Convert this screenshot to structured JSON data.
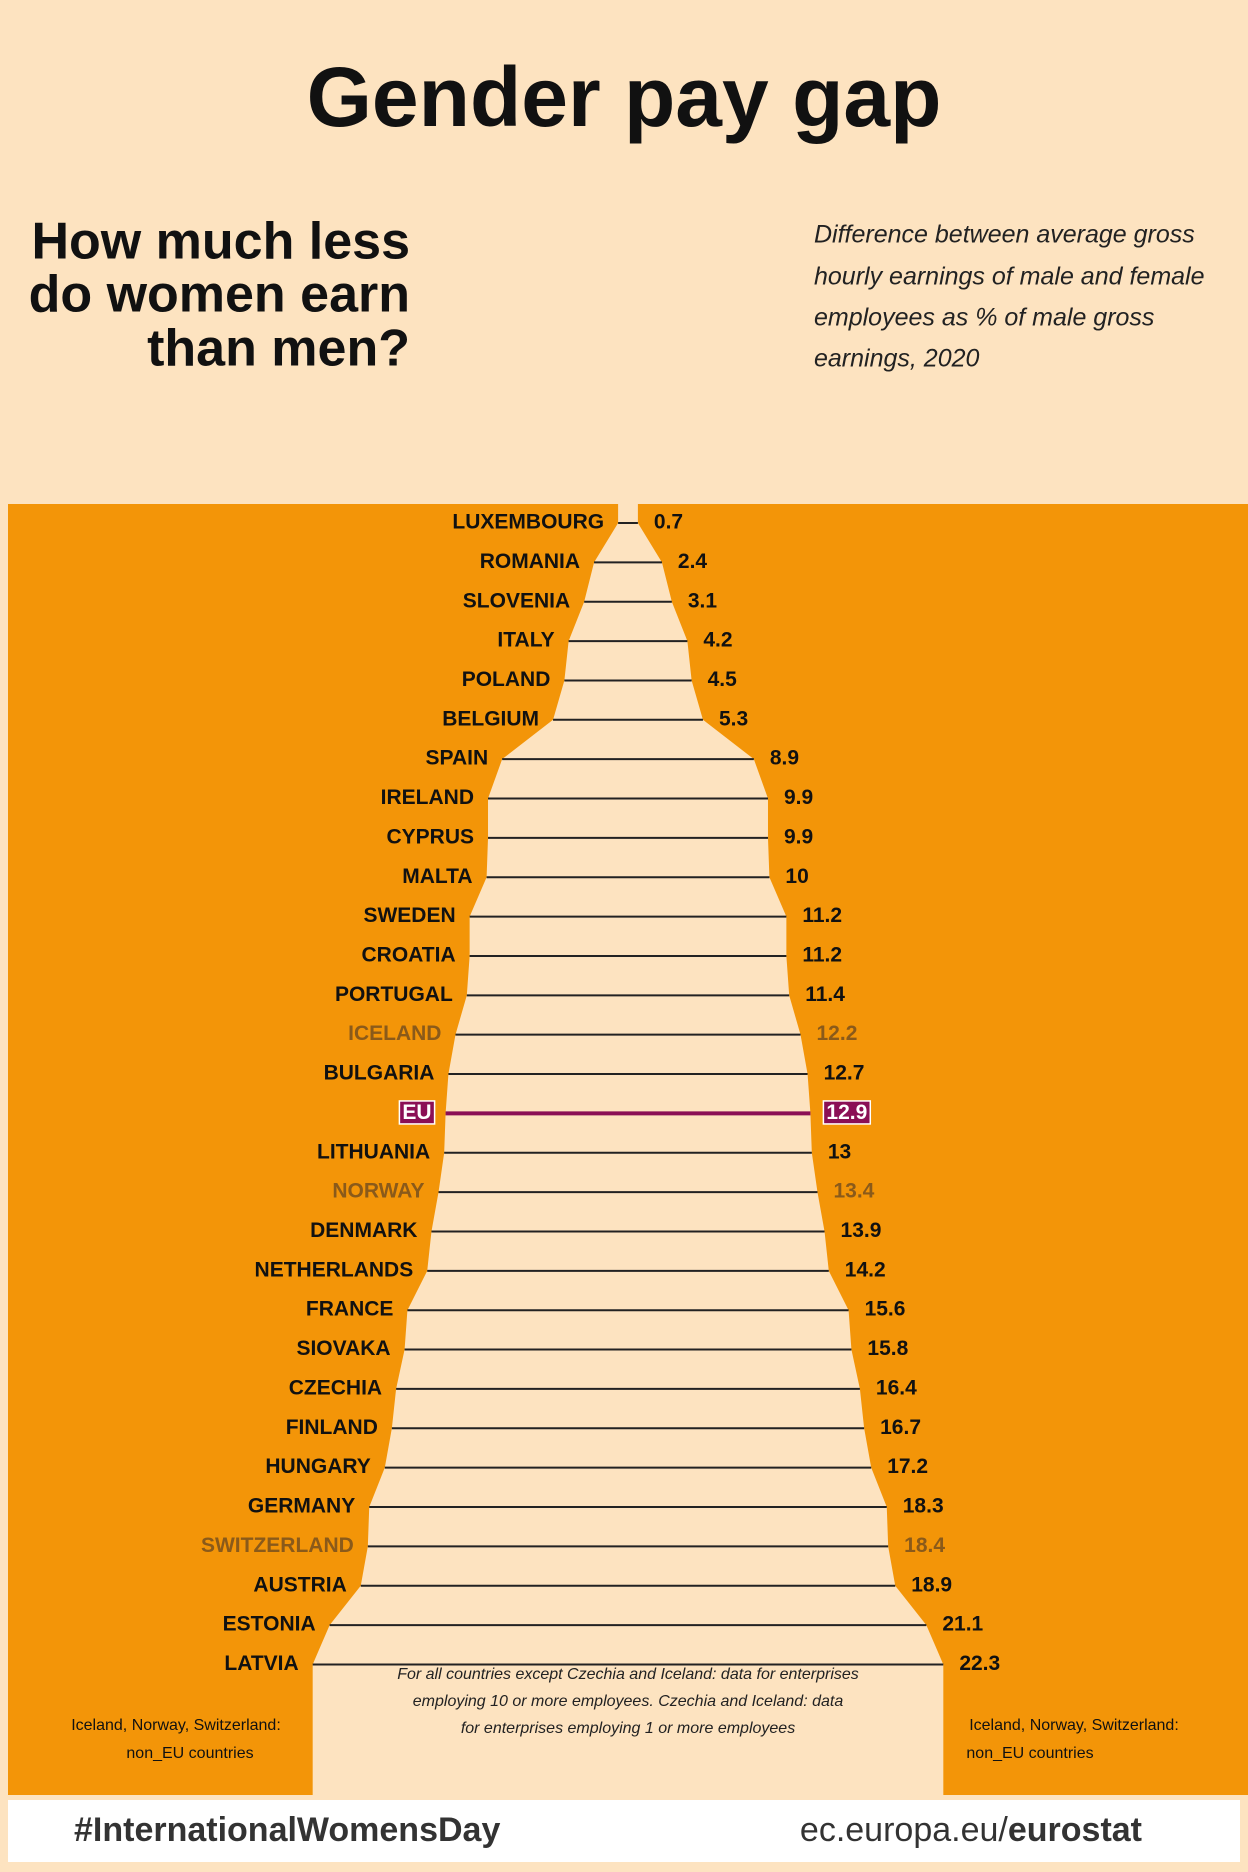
{
  "chart_data": {
    "type": "bar",
    "title": "Gender pay gap",
    "question": [
      "How much less",
      "do women earn",
      "than men?"
    ],
    "subtitle": [
      "Difference between average gross",
      "hourly earnings of male and female",
      "employees as % of male gross",
      "earnings, 2020"
    ],
    "categories": [
      "LUXEMBOURG",
      "ROMANIA",
      "SLOVENIA",
      "ITALY",
      "POLAND",
      "BELGIUM",
      "SPAIN",
      "IRELAND",
      "CYPRUS",
      "MALTA",
      "SWEDEN",
      "CROATIA",
      "PORTUGAL",
      "ICELAND",
      "BULGARIA",
      "EU",
      "LITHUANIA",
      "NORWAY",
      "DENMARK",
      "NETHERLANDS",
      "FRANCE",
      "SIOVAKA",
      "CZECHIA",
      "FINLAND",
      "HUNGARY",
      "GERMANY",
      "SWITZERLAND",
      "AUSTRIA",
      "ESTONIA",
      "LATVIA"
    ],
    "values": [
      0.7,
      2.4,
      3.1,
      4.2,
      4.5,
      5.3,
      8.9,
      9.9,
      9.9,
      10,
      11.2,
      11.2,
      11.4,
      12.2,
      12.7,
      12.9,
      13,
      13.4,
      13.9,
      14.2,
      15.6,
      15.8,
      16.4,
      16.7,
      17.2,
      18.3,
      18.4,
      18.9,
      21.1,
      22.3
    ],
    "label_colors": [
      "#111",
      "#111",
      "#111",
      "#111",
      "#111",
      "#111",
      "#111",
      "#111",
      "#111",
      "#111",
      "#111",
      "#111",
      "#111",
      "#8a5a1a",
      "#111",
      "#8b0f55",
      "#111",
      "#8a5a1a",
      "#111",
      "#111",
      "#111",
      "#111",
      "#111",
      "#111",
      "#111",
      "#111",
      "#8a5a1a",
      "#111",
      "#111",
      "#111"
    ],
    "highlight_color": "#8b0f55",
    "line_color": "#222",
    "background_color": "#f39508",
    "shape_color": "#fde3c0",
    "non_eu_note": [
      "Iceland, Norway, Switzerland:",
      "non_EU countries"
    ],
    "footnote": [
      "For all countries except Czechia and Iceland: data for enterprises",
      "employing 10 or more employees. Czechia and Iceland: data",
      "for enterprises employing 1 or more employees"
    ],
    "hashtag": "#InternationalWomensDay",
    "source": [
      "ec.europa.eu/",
      "eurostat"
    ]
  }
}
